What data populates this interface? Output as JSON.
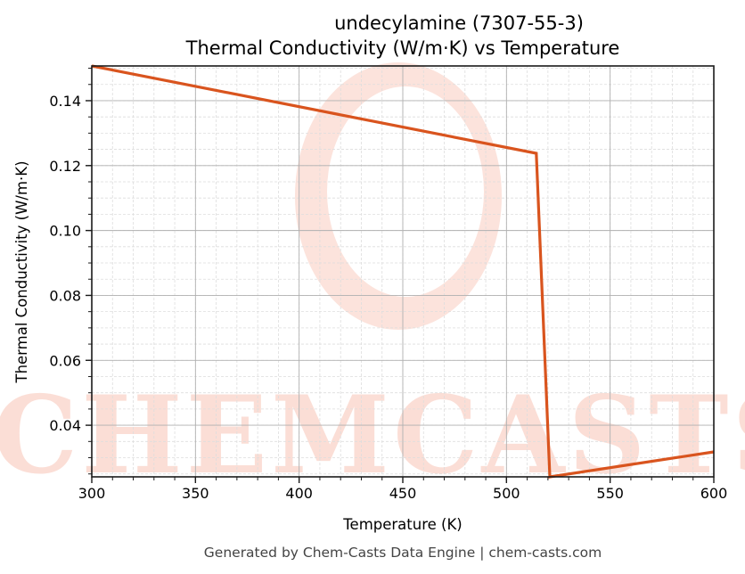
{
  "chart_data": {
    "type": "line",
    "title": "undecylamine (7307-55-3)",
    "subtitle": "Thermal Conductivity (W/m·K) vs Temperature",
    "xlabel": "Temperature (K)",
    "ylabel": "Thermal Conductivity (W/m·K)",
    "xlim": [
      300,
      600
    ],
    "ylim": [
      0.0241,
      0.1507
    ],
    "x_ticks": [
      300,
      350,
      400,
      450,
      500,
      550,
      600
    ],
    "x_tick_labels": [
      "300",
      "350",
      "400",
      "450",
      "500",
      "550",
      "600"
    ],
    "y_ticks": [
      0.04,
      0.06,
      0.08,
      0.1,
      0.12,
      0.14
    ],
    "y_tick_labels": [
      "0.04",
      "0.06",
      "0.08",
      "0.10",
      "0.12",
      "0.14"
    ],
    "grid": true,
    "minor_grid": true,
    "legend": null,
    "series": [
      {
        "name": "Thermal Conductivity",
        "color": "#d9541e",
        "x": [
          300,
          514.4,
          520.9,
          600
        ],
        "y": [
          0.1507,
          0.1238,
          0.0241,
          0.0318
        ]
      }
    ],
    "watermark": "CHEMCASTS"
  },
  "footer": {
    "text": "Generated by Chem-Casts Data Engine | chem-casts.com"
  },
  "colors": {
    "line": "#d9541e",
    "watermark": "#fbd9d0",
    "major_grid": "#b0b0b0",
    "minor_grid": "#dddddd"
  }
}
